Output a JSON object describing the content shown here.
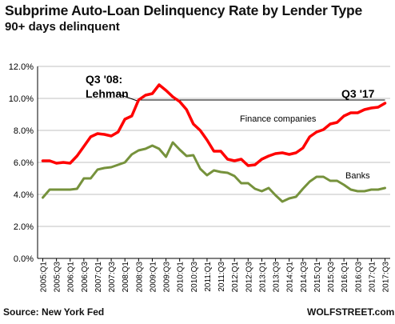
{
  "title": "Subprime Auto-Loan Delinquency Rate by Lender Type",
  "subtitle": "90+ days delinquent",
  "source": "Source: New York Fed",
  "brand": "WOLFSTREET.com",
  "colors": {
    "finance": "#ff0000",
    "banks": "#76923c",
    "grid": "#c0c0c0",
    "axis": "#000000"
  },
  "chart_data": {
    "type": "line",
    "xlabel": "",
    "ylabel": "",
    "ylim": [
      0,
      12
    ],
    "y_ticks": [
      0,
      2,
      4,
      6,
      8,
      10,
      12
    ],
    "y_tick_labels": [
      "0.0%",
      "2.0%",
      "4.0%",
      "6.0%",
      "8.0%",
      "10.0%",
      "12.0%"
    ],
    "grid": "horizontal",
    "x_tick_labels": [
      "2005:Q1",
      "2005:Q3",
      "2006:Q1",
      "2006:Q3",
      "2007:Q1",
      "2007:Q3",
      "2008:Q1",
      "2008:Q3",
      "2009:Q1",
      "2009:Q3",
      "2010:Q1",
      "2010:Q3",
      "2011:Q1",
      "2011:Q3",
      "2012:Q1",
      "2012:Q3",
      "2013:Q1",
      "2013:Q3",
      "2014:Q1",
      "2014:Q3",
      "2015:Q1",
      "2015:Q3",
      "2016:Q1",
      "2016:Q3",
      "2017:Q1",
      "2017:Q3"
    ],
    "x": [
      "2005:Q1",
      "2005:Q2",
      "2005:Q3",
      "2005:Q4",
      "2006:Q1",
      "2006:Q2",
      "2006:Q3",
      "2006:Q4",
      "2007:Q1",
      "2007:Q2",
      "2007:Q3",
      "2007:Q4",
      "2008:Q1",
      "2008:Q2",
      "2008:Q3",
      "2008:Q4",
      "2009:Q1",
      "2009:Q2",
      "2009:Q3",
      "2009:Q4",
      "2010:Q1",
      "2010:Q2",
      "2010:Q3",
      "2010:Q4",
      "2011:Q1",
      "2011:Q2",
      "2011:Q3",
      "2011:Q4",
      "2012:Q1",
      "2012:Q2",
      "2012:Q3",
      "2012:Q4",
      "2013:Q1",
      "2013:Q2",
      "2013:Q3",
      "2013:Q4",
      "2014:Q1",
      "2014:Q2",
      "2014:Q3",
      "2014:Q4",
      "2015:Q1",
      "2015:Q2",
      "2015:Q3",
      "2015:Q4",
      "2016:Q1",
      "2016:Q2",
      "2016:Q3",
      "2016:Q4",
      "2017:Q1",
      "2017:Q2",
      "2017:Q3"
    ],
    "series": [
      {
        "name": "Finance companies",
        "values": [
          6.1,
          6.1,
          5.95,
          6.0,
          5.95,
          6.4,
          7.0,
          7.6,
          7.8,
          7.75,
          7.65,
          7.9,
          8.7,
          8.9,
          9.9,
          10.2,
          10.3,
          10.85,
          10.5,
          10.1,
          9.8,
          9.3,
          8.4,
          8.0,
          7.4,
          6.7,
          6.7,
          6.2,
          6.1,
          6.2,
          5.8,
          5.85,
          6.2,
          6.4,
          6.55,
          6.6,
          6.5,
          6.6,
          6.9,
          7.6,
          7.9,
          8.05,
          8.4,
          8.5,
          8.9,
          9.1,
          9.1,
          9.3,
          9.4,
          9.45,
          9.7
        ]
      },
      {
        "name": "Banks",
        "values": [
          3.8,
          4.3,
          4.3,
          4.3,
          4.3,
          4.35,
          5.0,
          5.0,
          5.55,
          5.65,
          5.7,
          5.85,
          6.0,
          6.5,
          6.75,
          6.85,
          7.05,
          6.85,
          6.35,
          7.25,
          6.8,
          6.4,
          6.45,
          5.6,
          5.2,
          5.5,
          5.4,
          5.35,
          5.15,
          4.7,
          4.7,
          4.35,
          4.2,
          4.4,
          3.95,
          3.55,
          3.75,
          3.85,
          4.35,
          4.8,
          5.1,
          5.1,
          4.85,
          4.85,
          4.6,
          4.3,
          4.2,
          4.2,
          4.3,
          4.3,
          4.4
        ]
      }
    ],
    "annotations": {
      "lehman_line1": "Q3 '08:",
      "lehman_line2": "Lehman",
      "q3_17": "Q3 '17",
      "finance_label": "Finance companies",
      "banks_label": "Banks"
    }
  }
}
